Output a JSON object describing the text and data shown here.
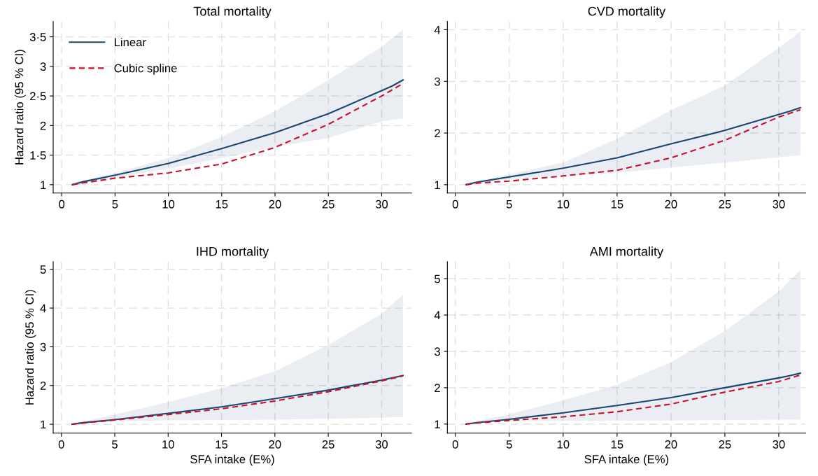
{
  "chart_data": [
    {
      "type": "line",
      "title": "Total mortality",
      "ylabel": "Hazard ratio (95 % CI)",
      "xlim": [
        -0.8,
        32.8
      ],
      "ylim": [
        0.86,
        3.76
      ],
      "xticks": [
        0,
        5,
        10,
        15,
        20,
        25,
        30
      ],
      "yticks": [
        1,
        {
          "value": 1.5,
          "label": "1·5"
        },
        2,
        {
          "value": 2.5,
          "label": "2·5"
        },
        3,
        {
          "value": 3.5,
          "label": "3·5"
        }
      ],
      "grid": true,
      "legend": "top left",
      "series": [
        {
          "name": "Linear",
          "color": "#1a476f",
          "line_style": "solid",
          "x": [
            1,
            2,
            5,
            10,
            15,
            20,
            25,
            30,
            31,
            32
          ],
          "values": [
            1.0,
            1.05,
            1.16,
            1.36,
            1.61,
            1.88,
            2.2,
            2.59,
            2.67,
            2.77
          ],
          "lower": [
            1.0,
            1.02,
            1.12,
            1.27,
            1.45,
            1.64,
            1.79,
            2.07,
            2.1,
            2.12
          ],
          "upper": [
            1.0,
            1.07,
            1.2,
            1.45,
            1.81,
            2.24,
            2.77,
            3.33,
            3.48,
            3.62
          ]
        },
        {
          "name": "Cubic spline",
          "color": "#c8102e",
          "line_style": "dashed",
          "x": [
            1,
            2,
            5,
            10,
            15,
            17.5,
            20,
            25,
            30,
            32
          ],
          "values": [
            1.0,
            1.03,
            1.11,
            1.2,
            1.35,
            1.49,
            1.63,
            2.02,
            2.5,
            2.71
          ]
        }
      ]
    },
    {
      "type": "line",
      "title": "CVD mortality",
      "xlim": [
        -0.74,
        32.5
      ],
      "ylim": [
        0.84,
        4.16
      ],
      "xticks": [
        0,
        5,
        10,
        15,
        20,
        25,
        30
      ],
      "yticks": [
        1,
        2,
        3,
        4
      ],
      "grid": true,
      "series": [
        {
          "color": "#1a476f",
          "line_style": "solid",
          "x": [
            1,
            2,
            5,
            10,
            15,
            20,
            25,
            30,
            31,
            32
          ],
          "values": [
            1.0,
            1.05,
            1.15,
            1.32,
            1.52,
            1.79,
            2.05,
            2.36,
            2.42,
            2.49
          ],
          "lower": [
            1.0,
            1.03,
            1.1,
            1.18,
            1.23,
            1.33,
            1.43,
            1.53,
            1.55,
            1.57
          ],
          "upper": [
            1.0,
            1.07,
            1.2,
            1.43,
            1.89,
            2.44,
            2.92,
            3.65,
            3.8,
            3.97
          ]
        },
        {
          "color": "#c8102e",
          "line_style": "dashed",
          "x": [
            1,
            2,
            5,
            10,
            15,
            20,
            25,
            30,
            32
          ],
          "values": [
            1.0,
            1.03,
            1.07,
            1.17,
            1.28,
            1.52,
            1.86,
            2.31,
            2.45
          ]
        }
      ]
    },
    {
      "type": "line",
      "title": "IHD mortality",
      "xlabel": "SFA intake (E%)",
      "ylabel": "Hazard ratio (95 % CI)",
      "xlim": [
        -0.77,
        32.8
      ],
      "ylim": [
        0.77,
        5.2
      ],
      "xticks": [
        0,
        5,
        10,
        15,
        20,
        25,
        30
      ],
      "yticks": [
        1,
        2,
        3,
        4,
        5
      ],
      "grid": true,
      "series": [
        {
          "color": "#1a476f",
          "line_style": "solid",
          "x": [
            1,
            2,
            5,
            10,
            15,
            20,
            25,
            30,
            31,
            32
          ],
          "values": [
            1.0,
            1.04,
            1.12,
            1.28,
            1.45,
            1.66,
            1.88,
            2.14,
            2.2,
            2.26
          ],
          "lower": [
            1.0,
            1.02,
            1.08,
            1.1,
            1.11,
            1.12,
            1.14,
            1.17,
            1.18,
            1.18
          ],
          "upper": [
            1.0,
            1.07,
            1.25,
            1.57,
            1.93,
            2.37,
            3.05,
            3.85,
            4.1,
            4.35
          ]
        },
        {
          "color": "#c8102e",
          "line_style": "dashed",
          "x": [
            1,
            2,
            5,
            10,
            15,
            20,
            25,
            30,
            32
          ],
          "values": [
            1.0,
            1.03,
            1.11,
            1.25,
            1.4,
            1.6,
            1.84,
            2.12,
            2.25
          ]
        }
      ]
    },
    {
      "type": "line",
      "title": "AMI mortality",
      "xlabel": "SFA intake (E%)",
      "xlim": [
        -0.74,
        32.5
      ],
      "ylim": [
        0.75,
        5.47
      ],
      "xticks": [
        0,
        5,
        10,
        15,
        20,
        25,
        30
      ],
      "yticks": [
        1,
        2,
        3,
        4,
        5
      ],
      "grid": true,
      "series": [
        {
          "color": "#1a476f",
          "line_style": "solid",
          "x": [
            1,
            2,
            5,
            10,
            15,
            20,
            25,
            30,
            31,
            32
          ],
          "values": [
            1.0,
            1.04,
            1.13,
            1.31,
            1.51,
            1.73,
            2.0,
            2.27,
            2.33,
            2.4
          ],
          "lower": [
            1.0,
            1.03,
            1.08,
            1.09,
            1.1,
            1.1,
            1.11,
            1.12,
            1.12,
            1.12
          ],
          "upper": [
            1.0,
            1.08,
            1.27,
            1.65,
            2.08,
            2.7,
            3.56,
            4.65,
            4.95,
            5.23
          ]
        },
        {
          "color": "#c8102e",
          "line_style": "dashed",
          "x": [
            1,
            2,
            5,
            10,
            15,
            20,
            25,
            30,
            32
          ],
          "values": [
            1.0,
            1.03,
            1.1,
            1.2,
            1.34,
            1.55,
            1.88,
            2.17,
            2.35
          ]
        }
      ]
    }
  ]
}
